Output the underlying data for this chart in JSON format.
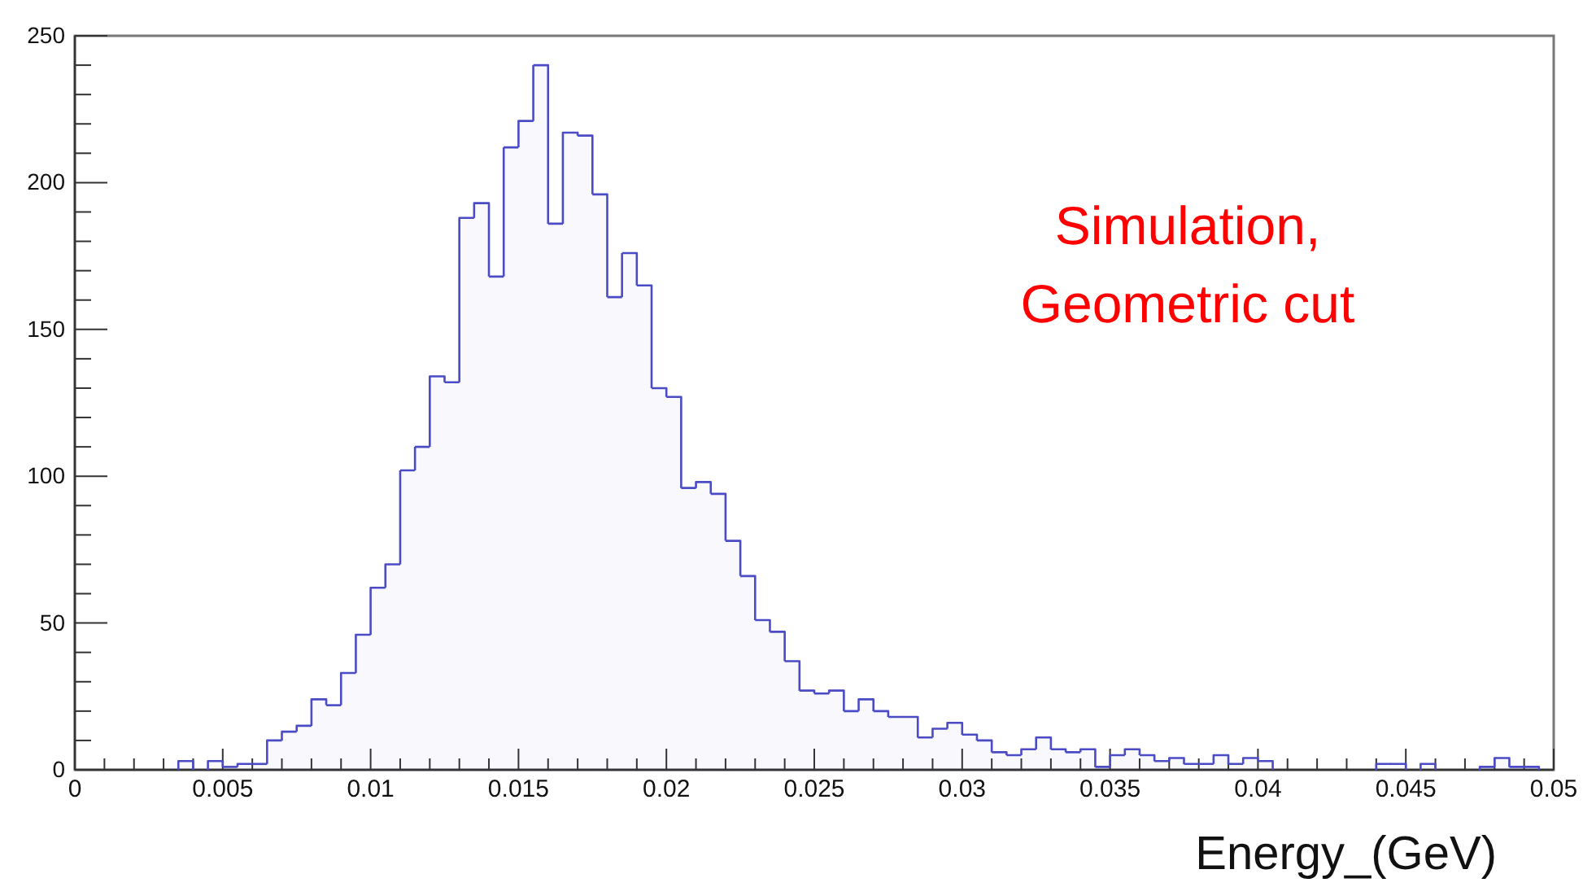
{
  "chart_data": {
    "type": "histogram",
    "xlabel": "Energy_(GeV)",
    "color": "#4b4bc6",
    "annotations": [
      "Simulation,\nGeometric cut"
    ],
    "bins": [
      0,
      0.0005,
      0.001,
      0.0015,
      0.002,
      0.0025,
      0.003,
      0.0035,
      0.004,
      0.0045,
      0.005,
      0.0055,
      0.006,
      0.0065,
      0.007,
      0.0075,
      0.008,
      0.0085,
      0.009,
      0.0095,
      0.01,
      0.0105,
      0.011,
      0.0115,
      0.012,
      0.0125,
      0.013,
      0.0135,
      0.014,
      0.0145,
      0.015,
      0.0155,
      0.016,
      0.0165,
      0.017,
      0.0175,
      0.018,
      0.0185,
      0.019,
      0.0195,
      0.02,
      0.0205,
      0.021,
      0.0215,
      0.022,
      0.0225,
      0.023,
      0.0235,
      0.024,
      0.0245,
      0.025,
      0.0255,
      0.026,
      0.0265,
      0.027,
      0.0275,
      0.028,
      0.0285,
      0.029,
      0.0295,
      0.03,
      0.0305,
      0.031,
      0.0315,
      0.032,
      0.0325,
      0.033,
      0.0335,
      0.034,
      0.0345,
      0.035,
      0.0355,
      0.036,
      0.0365,
      0.037,
      0.0375,
      0.038,
      0.0385,
      0.039,
      0.0395,
      0.04,
      0.0405,
      0.041,
      0.0415,
      0.042,
      0.0425,
      0.043,
      0.0435,
      0.044,
      0.0445,
      0.045,
      0.0455,
      0.046,
      0.0465,
      0.047,
      0.0475,
      0.048,
      0.0485,
      0.049,
      0.0495,
      0.05
    ],
    "values": [
      0,
      0,
      0,
      0,
      0,
      0,
      0,
      3,
      0,
      3,
      1,
      2,
      2,
      10,
      13,
      15,
      24,
      22,
      33,
      46,
      62,
      70,
      102,
      110,
      134,
      132,
      188,
      193,
      168,
      212,
      221,
      240,
      186,
      217,
      216,
      196,
      161,
      176,
      165,
      130,
      127,
      96,
      98,
      94,
      78,
      66,
      51,
      47,
      37,
      27,
      26,
      27,
      20,
      24,
      20,
      18,
      18,
      11,
      14,
      16,
      12,
      10,
      6,
      5,
      7,
      11,
      7,
      6,
      7,
      1,
      5,
      7,
      5,
      3,
      4,
      2,
      2,
      5,
      2,
      4,
      3,
      0,
      0,
      0,
      0,
      0,
      0,
      0,
      2,
      2,
      0,
      2,
      0,
      0,
      0,
      1,
      4,
      1,
      1,
      0
    ],
    "xlim": [
      0,
      0.05
    ],
    "ylim": [
      0,
      250
    ],
    "xticks": [
      0,
      {
        "value": 0.001,
        "label": null
      },
      {
        "value": 0.002,
        "label": null
      },
      {
        "value": 0.003,
        "label": null
      },
      {
        "value": 0.004,
        "label": null
      },
      0.005,
      {
        "value": 0.006,
        "label": null
      },
      {
        "value": 0.007,
        "label": null
      },
      {
        "value": 0.008,
        "label": null
      },
      {
        "value": 0.009,
        "label": null
      },
      0.01,
      {
        "value": 0.011,
        "label": null
      },
      {
        "value": 0.012,
        "label": null
      },
      {
        "value": 0.013,
        "label": null
      },
      {
        "value": 0.014,
        "label": null
      },
      0.015,
      {
        "value": 0.016,
        "label": null
      },
      {
        "value": 0.017,
        "label": null
      },
      {
        "value": 0.018,
        "label": null
      },
      {
        "value": 0.019,
        "label": null
      },
      0.02,
      {
        "value": 0.021,
        "label": null
      },
      {
        "value": 0.022,
        "label": null
      },
      {
        "value": 0.023,
        "label": null
      },
      {
        "value": 0.024,
        "label": null
      },
      0.025,
      {
        "value": 0.026,
        "label": null
      },
      {
        "value": 0.027,
        "label": null
      },
      {
        "value": 0.028,
        "label": null
      },
      {
        "value": 0.029,
        "label": null
      },
      0.03,
      {
        "value": 0.031,
        "label": null
      },
      {
        "value": 0.032,
        "label": null
      },
      {
        "value": 0.033,
        "label": null
      },
      {
        "value": 0.034,
        "label": null
      },
      0.035,
      {
        "value": 0.036,
        "label": null
      },
      {
        "value": 0.037,
        "label": null
      },
      {
        "value": 0.038,
        "label": null
      },
      {
        "value": 0.039,
        "label": null
      },
      0.04,
      {
        "value": 0.041,
        "label": null
      },
      {
        "value": 0.042,
        "label": null
      },
      {
        "value": 0.043,
        "label": null
      },
      {
        "value": 0.044,
        "label": null
      },
      0.045,
      {
        "value": 0.046,
        "label": null
      },
      {
        "value": 0.047,
        "label": null
      },
      {
        "value": 0.048,
        "label": null
      },
      {
        "value": 0.049,
        "label": null
      },
      0.05
    ],
    "yticks": [
      0,
      {
        "value": 10,
        "label": null
      },
      {
        "value": 20,
        "label": null
      },
      {
        "value": 30,
        "label": null
      },
      {
        "value": 40,
        "label": null
      },
      50,
      {
        "value": 60,
        "label": null
      },
      {
        "value": 70,
        "label": null
      },
      {
        "value": 80,
        "label": null
      },
      {
        "value": 90,
        "label": null
      },
      100,
      {
        "value": 110,
        "label": null
      },
      {
        "value": 120,
        "label": null
      },
      {
        "value": 130,
        "label": null
      },
      {
        "value": 140,
        "label": null
      },
      150,
      {
        "value": 160,
        "label": null
      },
      {
        "value": 170,
        "label": null
      },
      {
        "value": 180,
        "label": null
      },
      {
        "value": 190,
        "label": null
      },
      200,
      {
        "value": 210,
        "label": null
      },
      {
        "value": 220,
        "label": null
      },
      {
        "value": 230,
        "label": null
      },
      {
        "value": 240,
        "label": null
      },
      250
    ],
    "grid": false
  }
}
